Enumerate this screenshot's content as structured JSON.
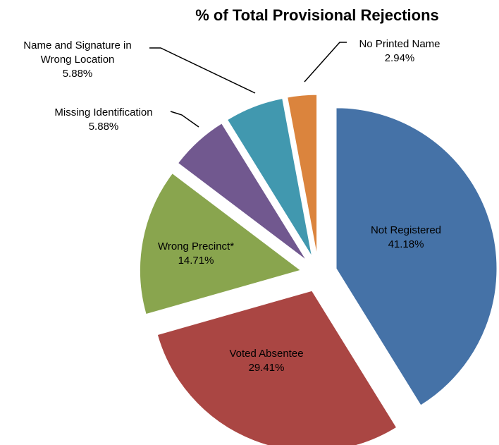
{
  "chart_data": {
    "type": "pie",
    "title": "% of Total Provisional Rejections",
    "categories": [
      "Not Registered",
      "Voted Absentee",
      "Wrong Precinct*",
      "Missing Identification",
      "Name and Signature in Wrong Location",
      "No Printed Name"
    ],
    "values": [
      41.18,
      29.41,
      14.71,
      5.88,
      5.88,
      2.94
    ],
    "value_labels": [
      "41.18%",
      "29.41%",
      "14.71%",
      "5.88%",
      "5.88%",
      "2.94%"
    ],
    "colors": [
      "#4572a7",
      "#aa4643",
      "#89a54e",
      "#71588f",
      "#4198af",
      "#db843d"
    ]
  }
}
